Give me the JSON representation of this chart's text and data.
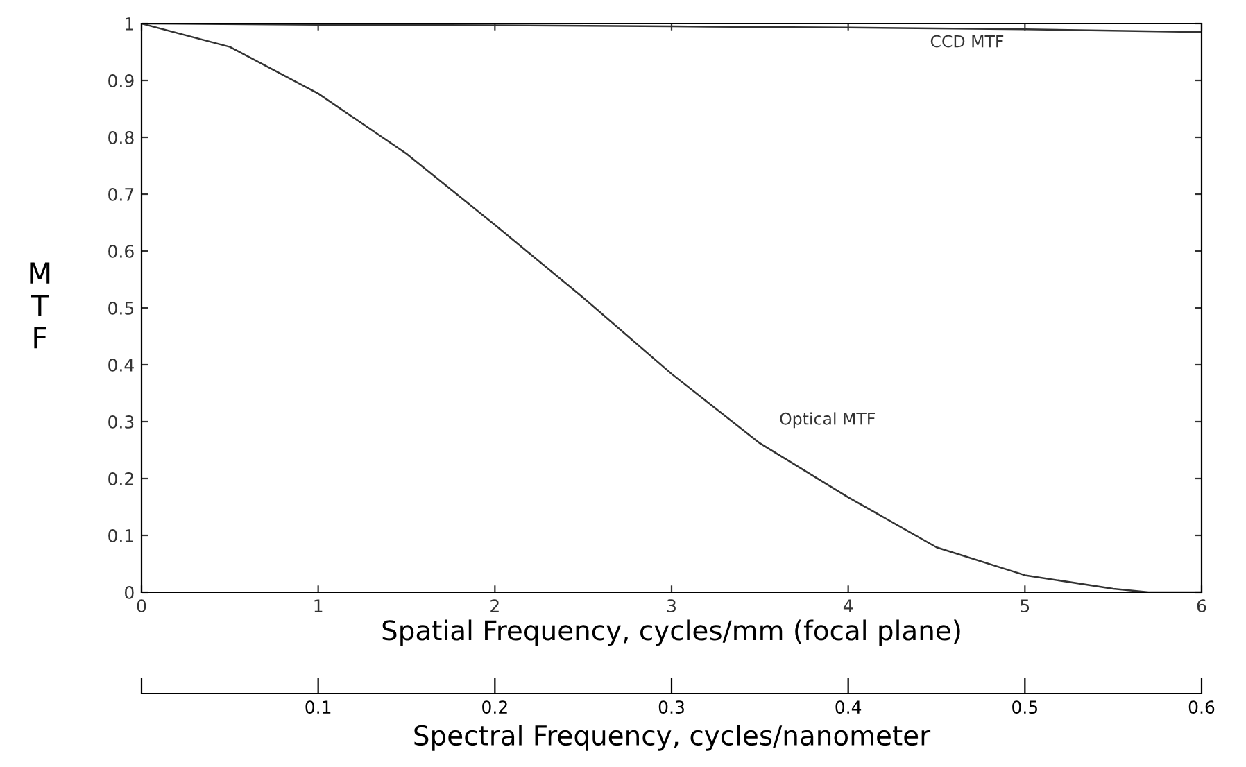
{
  "chart_data": {
    "type": "line",
    "xlabel": "Spatial Frequency, cycles/mm (focal plane)",
    "ylabel": "MTF",
    "x2label": "Spectral Frequency, cycles/nanometer",
    "xlim": [
      0,
      6
    ],
    "ylim": [
      0,
      1
    ],
    "xticks": [
      0,
      1,
      2,
      3,
      4,
      5,
      6
    ],
    "yticks": [
      0,
      0.1,
      0.2,
      0.3,
      0.4,
      0.5,
      0.6,
      0.7,
      0.8,
      0.9,
      1
    ],
    "x2lim": [
      0,
      0.6
    ],
    "x2ticks": [
      {
        "value": 0,
        "label": null
      },
      0.1,
      0.2,
      0.3,
      0.4,
      0.5,
      0.6
    ],
    "grid": false,
    "legend": false,
    "marker": "none",
    "line_style": "solid",
    "series": [
      {
        "name": "CCD MTF",
        "color": "#333333",
        "x": [
          0,
          1,
          2,
          3,
          4,
          5,
          6
        ],
        "values": [
          1.0,
          0.998,
          0.997,
          0.995,
          0.993,
          0.99,
          0.985
        ]
      },
      {
        "name": "Optical MTF",
        "color": "#333333",
        "x": [
          0,
          0.5,
          1,
          1.5,
          2,
          2.5,
          3,
          3.5,
          4,
          4.5,
          5,
          5.5,
          5.7,
          6
        ],
        "values": [
          1.0,
          0.959,
          0.877,
          0.771,
          0.646,
          0.518,
          0.384,
          0.262,
          0.167,
          0.079,
          0.03,
          0.006,
          0.0,
          0.0
        ]
      }
    ]
  }
}
